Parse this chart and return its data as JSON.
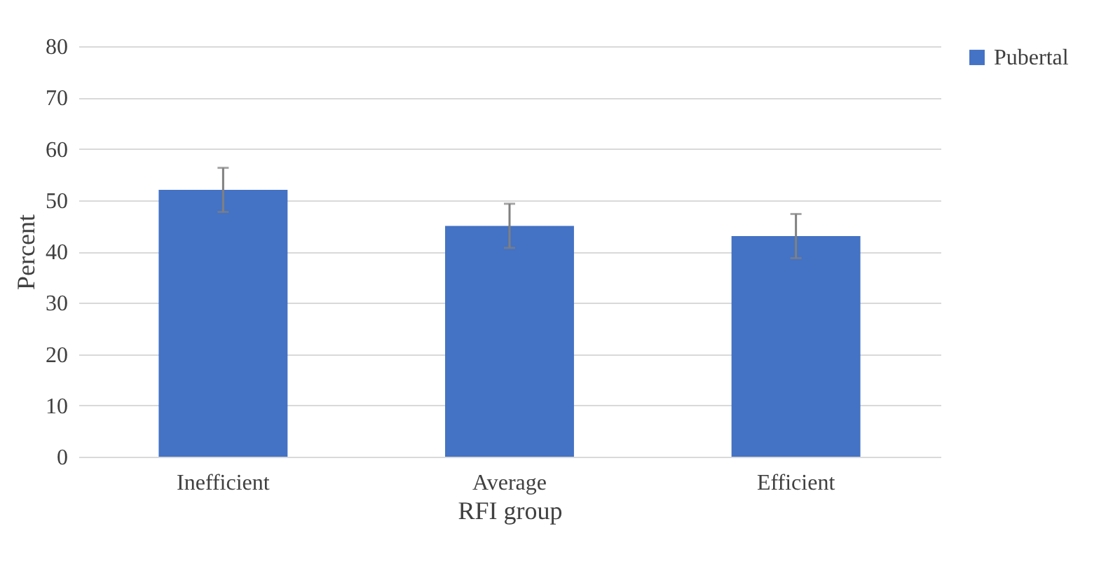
{
  "chart_data": {
    "type": "bar",
    "xlabel": "RFI group",
    "ylabel": "Percent",
    "categories": [
      "Inefficient",
      "Average",
      "Efficient"
    ],
    "series": [
      {
        "name": "Pubertal",
        "color": "#4472c4",
        "values": [
          52,
          45,
          43
        ],
        "errors": [
          4.3,
          4.3,
          4.3
        ]
      }
    ],
    "ylim": [
      0,
      80
    ],
    "yticks": [
      0,
      10,
      20,
      30,
      40,
      50,
      60,
      70,
      80
    ],
    "grid": "y",
    "legend": "right"
  }
}
